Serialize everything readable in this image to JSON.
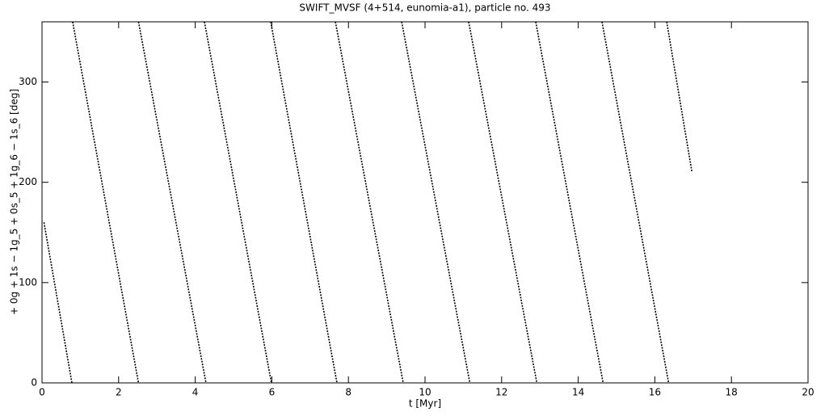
{
  "chart_data": {
    "type": "line",
    "title": "SWIFT_MVSF (4+514, eunomia-a1), particle no. 493",
    "x_label": "t [Myr]",
    "y_label": "+ 0g + 1s − 1g_5 + 0s_5 + 1g_6 − 1s_6 [deg]",
    "x": [
      0.05,
      0.78,
      null,
      0.8,
      2.52,
      null,
      2.52,
      4.28,
      null,
      4.24,
      5.99,
      null,
      5.97,
      7.7,
      null,
      7.66,
      9.43,
      null,
      9.39,
      11.17,
      null,
      11.14,
      12.92,
      null,
      12.89,
      14.65,
      null,
      14.62,
      16.36,
      null,
      16.31,
      16.97
    ],
    "values": [
      160,
      0,
      null,
      360,
      0,
      null,
      360,
      0,
      null,
      360,
      0,
      null,
      360,
      0,
      null,
      360,
      0,
      null,
      360,
      0,
      null,
      360,
      0,
      null,
      360,
      0,
      null,
      360,
      0,
      null,
      360,
      210
    ],
    "color": "#000000",
    "xlim": [
      0,
      20
    ],
    "xticks": [
      0,
      2,
      4,
      6,
      8,
      10,
      12,
      14,
      16,
      18,
      20
    ],
    "ylim": [
      0,
      360
    ],
    "yticks": [
      0,
      100,
      200,
      300
    ]
  }
}
